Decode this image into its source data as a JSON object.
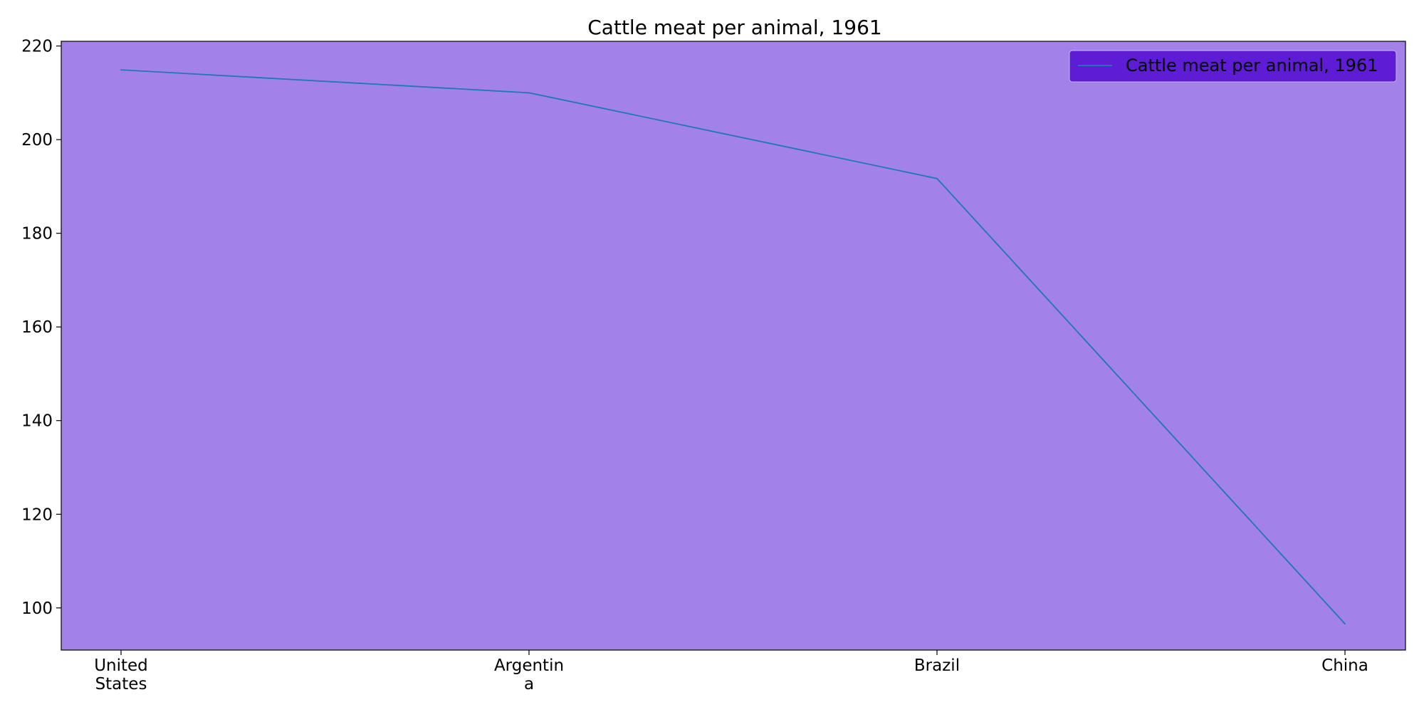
{
  "chart_data": {
    "type": "line",
    "title": "Cattle meat per animal, 1961",
    "xlabel": "",
    "ylabel": "",
    "categories": [
      [
        "United",
        "States"
      ],
      [
        "Argentin",
        "a"
      ],
      [
        "Brazil"
      ],
      [
        "China"
      ]
    ],
    "series": [
      {
        "name": "Cattle meat per animal, 1961",
        "values": [
          214.9,
          210.0,
          191.7,
          96.6
        ]
      }
    ],
    "ylim": [
      91,
      221
    ],
    "yticks": [
      100,
      120,
      140,
      160,
      180,
      200,
      220
    ],
    "grid": false,
    "legend_position": "top-right"
  },
  "colors": {
    "plot_background": "#a281e8",
    "line": "#1f77b4",
    "legend_background": "#5e1cd4",
    "legend_border": "#c9b8f0",
    "axis": "#000000"
  }
}
